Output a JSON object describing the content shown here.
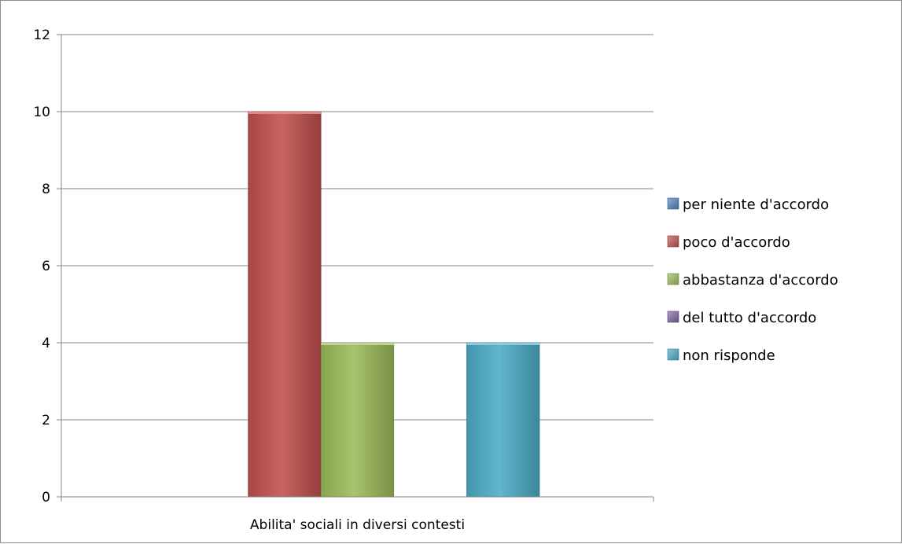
{
  "chart_data": {
    "type": "bar",
    "categories": [
      "Abilita' sociali in diversi contesti"
    ],
    "series": [
      {
        "name": "per niente d'accordo",
        "values": [
          0
        ],
        "color": "#4f81bd"
      },
      {
        "name": "poco d'accordo",
        "values": [
          10
        ],
        "color": "#c0504d"
      },
      {
        "name": "abbastanza d'accordo",
        "values": [
          4
        ],
        "color": "#9bbb59"
      },
      {
        "name": "del tutto d'accordo",
        "values": [
          0
        ],
        "color": "#8064a2"
      },
      {
        "name": "non risponde",
        "values": [
          4
        ],
        "color": "#4bacc6"
      }
    ],
    "ylim": [
      0,
      12
    ],
    "yticks": [
      "0",
      "2",
      "4",
      "6",
      "8",
      "10",
      "12"
    ],
    "grid": true,
    "legend_position": "right",
    "title": "",
    "xlabel": "",
    "ylabel": ""
  }
}
